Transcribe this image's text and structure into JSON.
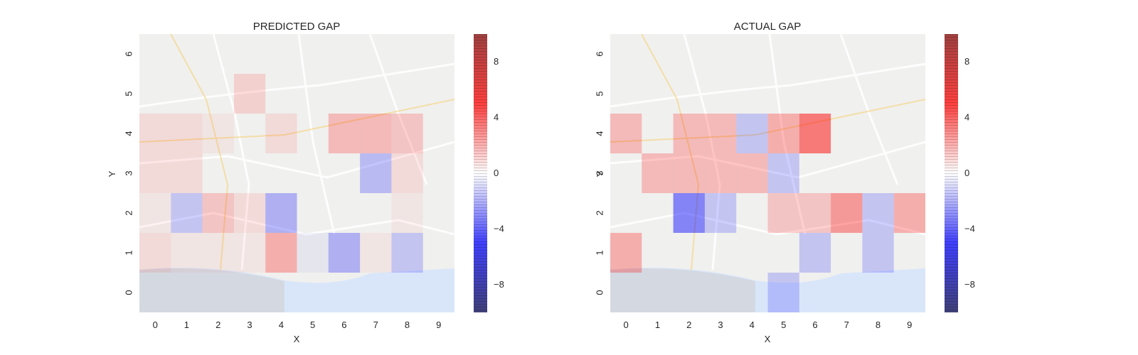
{
  "chart_data": [
    {
      "type": "heatmap",
      "title": "PREDICTED GAP",
      "xlabel": "X",
      "ylabel": "Y",
      "x_ticks": [
        "0",
        "1",
        "2",
        "3",
        "4",
        "5",
        "6",
        "7",
        "8",
        "9"
      ],
      "y_ticks": [
        "0",
        "1",
        "2",
        "3",
        "4",
        "5",
        "6"
      ],
      "grid": false,
      "background": "map of Porto (Pelada, Campinas, Lapa, Paranhos, Ramalde, Arrabida, Ouro)",
      "colormap": "seismic",
      "vmin": -10,
      "vmax": 10,
      "colorbar_ticks": [
        "8",
        "4",
        "0",
        "−4",
        "−8"
      ],
      "colorbar_tick_values": [
        8,
        4,
        0,
        -4,
        -8
      ],
      "values_note": "rows listed from Y=0 (bottom) to Y=6 (top), columns X=0..9",
      "values": [
        [
          0,
          0,
          0,
          0,
          0,
          0,
          0,
          0,
          0,
          0
        ],
        [
          1,
          0.5,
          0.5,
          0.5,
          3,
          -0.5,
          -3,
          0.5,
          -2,
          0
        ],
        [
          0.5,
          -2,
          2,
          1,
          -3,
          0,
          0,
          0,
          0.5,
          0
        ],
        [
          1,
          1,
          0,
          0,
          0,
          0,
          0,
          -2.5,
          1,
          0
        ],
        [
          1,
          1,
          0.5,
          0,
          1,
          0,
          2.5,
          2.5,
          2,
          0
        ],
        [
          0,
          0,
          0,
          1.5,
          0,
          0,
          0,
          0,
          0,
          0
        ],
        [
          0,
          0,
          0,
          0,
          0,
          0,
          0,
          0,
          0,
          0
        ]
      ]
    },
    {
      "type": "heatmap",
      "title": "ACTUAL GAP",
      "xlabel": "X",
      "ylabel": "Y",
      "x_ticks": [
        "0",
        "1",
        "2",
        "3",
        "4",
        "5",
        "6",
        "7",
        "8",
        "9"
      ],
      "y_ticks": [
        "0",
        "1",
        "2",
        "3",
        "4",
        "5",
        "6"
      ],
      "grid": false,
      "background": "map of Porto (Pelada, Campinas, Lapa, Paranhos, Ramalde, Arrabida, Ouro)",
      "colormap": "seismic",
      "vmin": -10,
      "vmax": 10,
      "colorbar_ticks": [
        "8",
        "4",
        "0",
        "−4",
        "−8"
      ],
      "colorbar_tick_values": [
        8,
        4,
        0,
        -4,
        -8
      ],
      "values_note": "rows listed from Y=0 (bottom) to Y=6 (top), columns X=0..9",
      "values": [
        [
          0,
          0,
          0,
          0,
          0,
          -2,
          0,
          0,
          0,
          0
        ],
        [
          3,
          0,
          0,
          0,
          0,
          0,
          -2,
          0,
          -2,
          0
        ],
        [
          0,
          0,
          -5,
          -2,
          0,
          2,
          2,
          4,
          -2,
          3
        ],
        [
          0,
          2.5,
          2.5,
          2.5,
          2.5,
          -2,
          0,
          0,
          0,
          0
        ],
        [
          2.5,
          0,
          2.5,
          2.5,
          -2,
          3,
          5.5,
          0,
          0,
          0
        ],
        [
          0,
          0,
          0,
          0,
          0,
          0,
          0,
          0,
          0,
          0
        ],
        [
          0,
          0,
          0,
          0,
          0,
          0,
          0,
          0,
          0,
          0
        ]
      ]
    }
  ]
}
